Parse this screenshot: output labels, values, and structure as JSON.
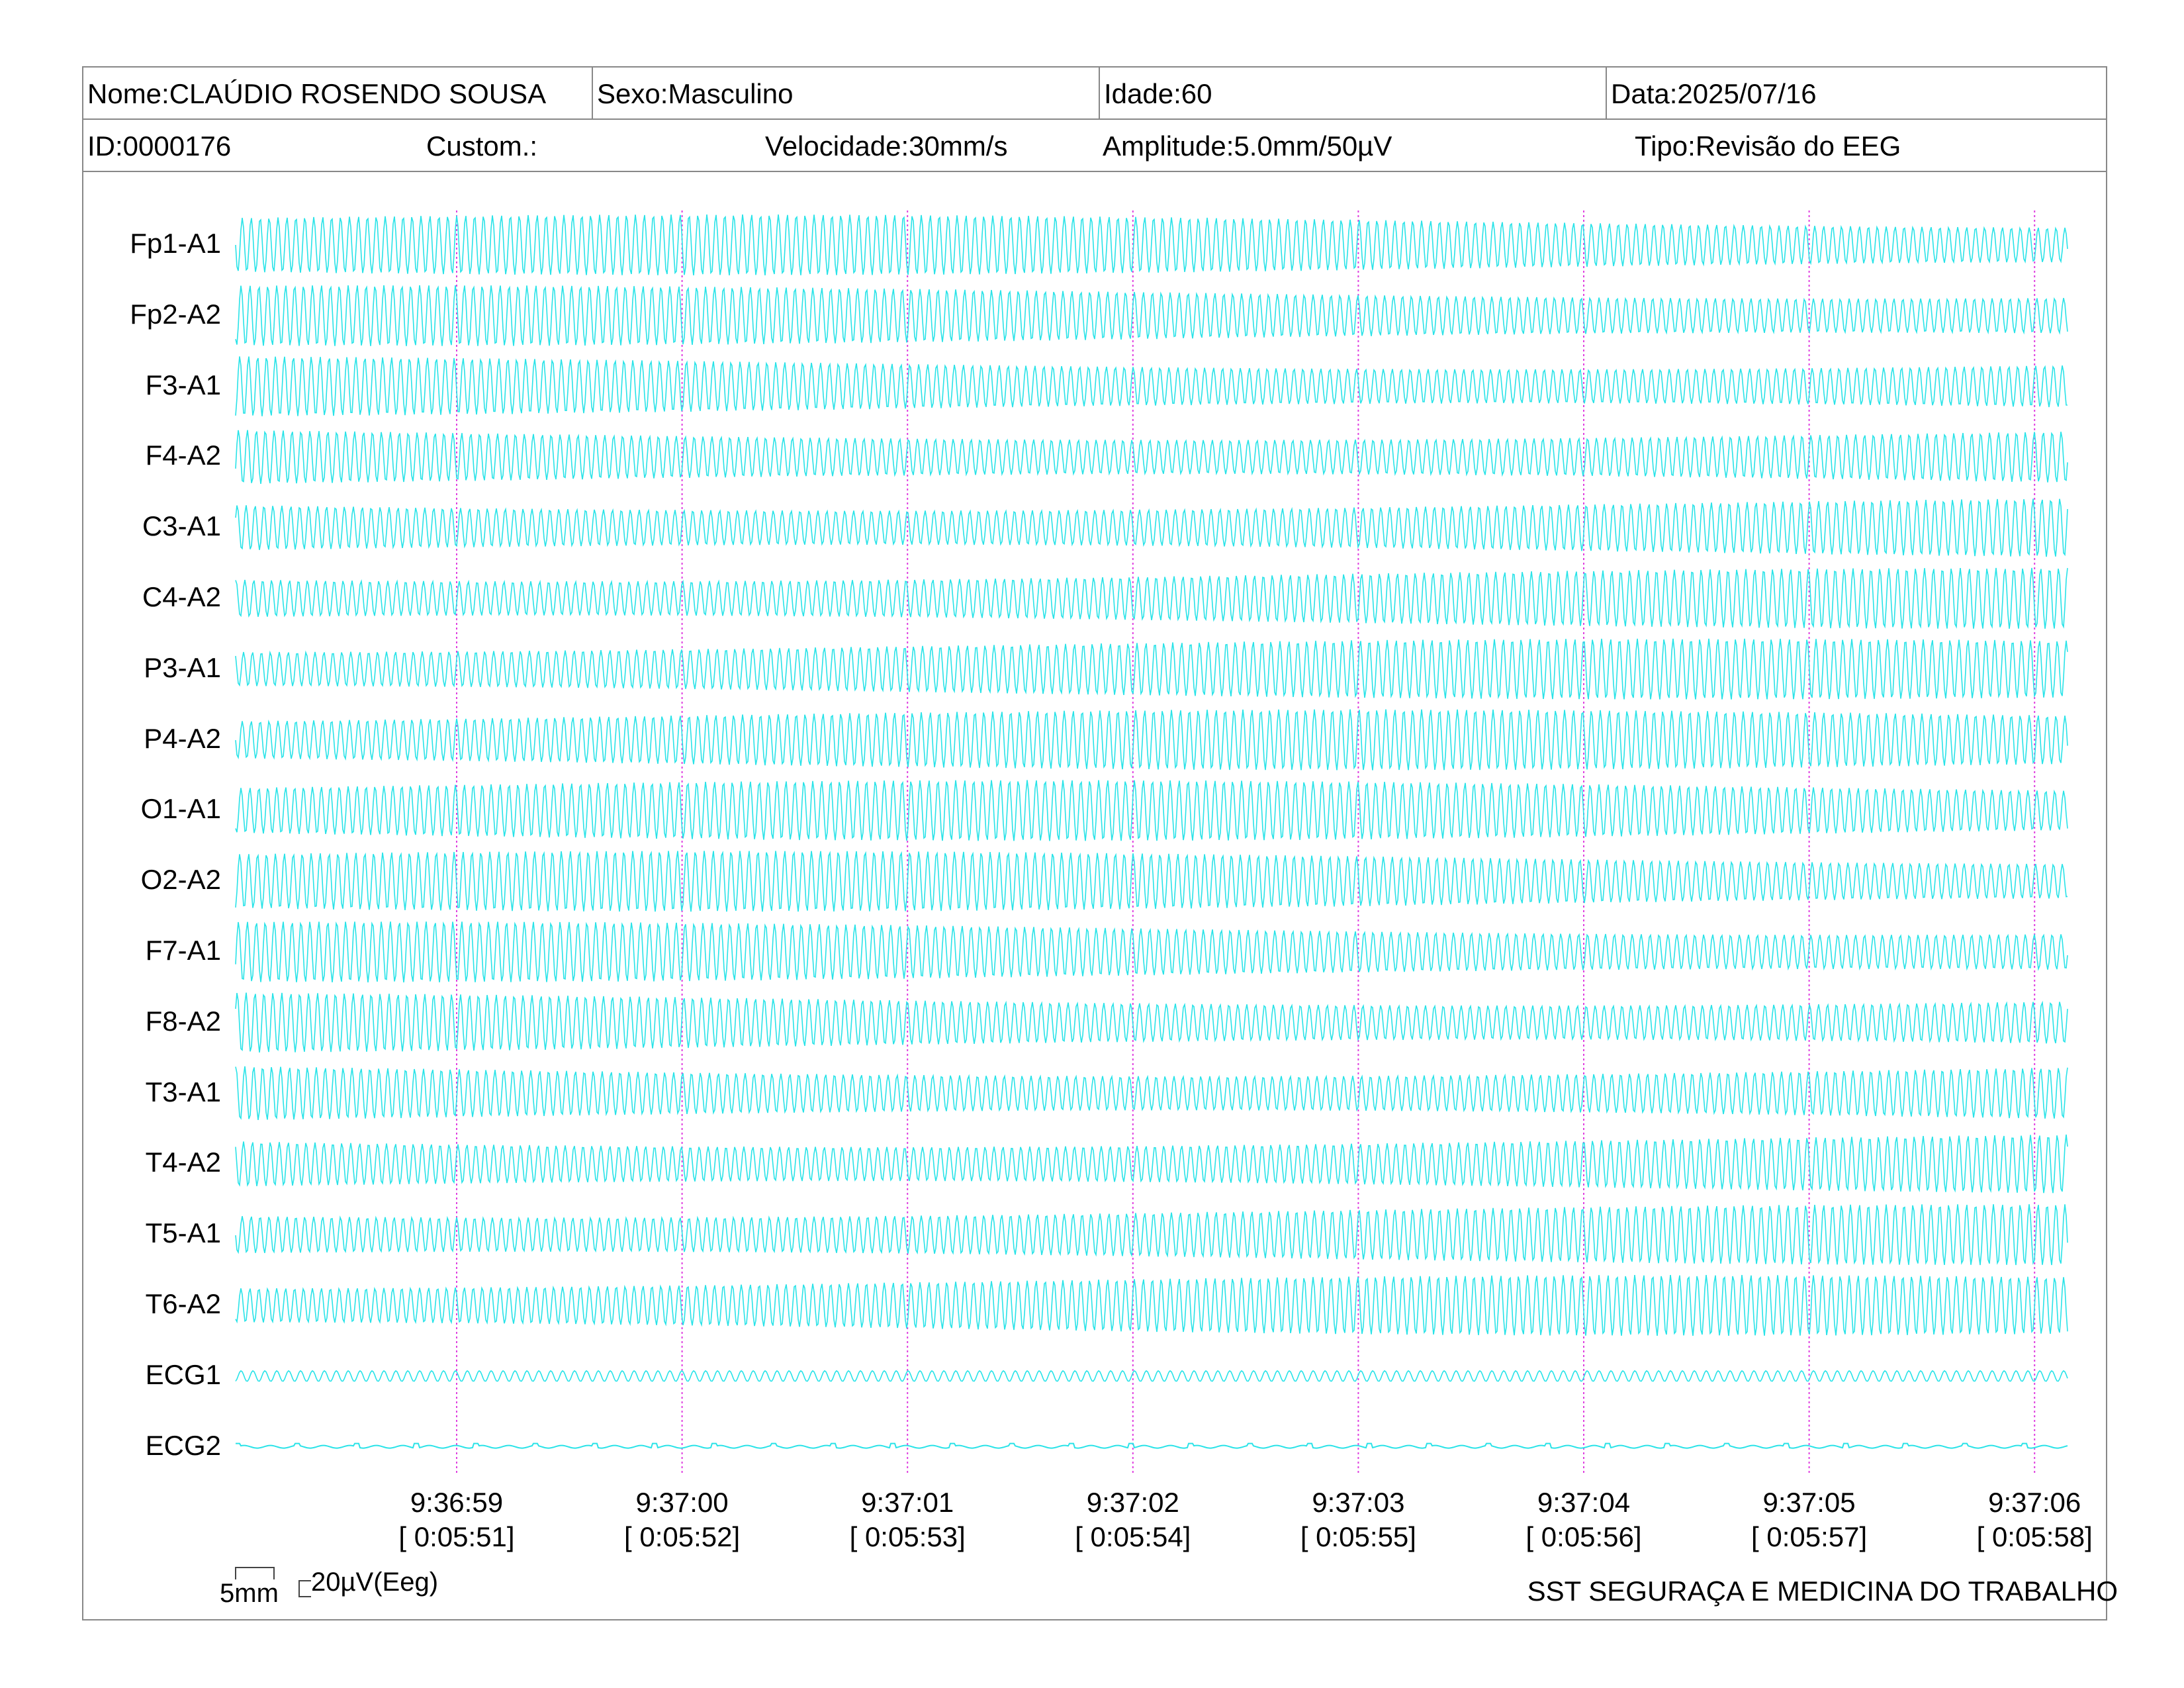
{
  "header": {
    "name": "Nome:CLAÚDIO ROSENDO SOUSA",
    "sex": "Sexo:Masculino",
    "age": "Idade:60",
    "date": "Data:2025/07/16",
    "id": "ID:0000176",
    "custom": "Custom.:",
    "speed": "Velocidade:30mm/s",
    "amplitude": "Amplitude:5.0mm/50µV",
    "type": "Tipo:Revisão do EEG"
  },
  "channels": [
    "Fp1-A1",
    "Fp2-A2",
    "F3-A1",
    "F4-A2",
    "C3-A1",
    "C4-A2",
    "P3-A1",
    "P4-A2",
    "O1-A1",
    "O2-A2",
    "F7-A1",
    "F8-A2",
    "T3-A1",
    "T4-A2",
    "T5-A1",
    "T6-A2",
    "ECG1",
    "ECG2"
  ],
  "time_marks": [
    {
      "clock": "9:36:59",
      "elapsed": "[ 0:05:51]"
    },
    {
      "clock": "9:37:00",
      "elapsed": "[ 0:05:52]"
    },
    {
      "clock": "9:37:01",
      "elapsed": "[ 0:05:53]"
    },
    {
      "clock": "9:37:02",
      "elapsed": "[ 0:05:54]"
    },
    {
      "clock": "9:37:03",
      "elapsed": "[ 0:05:55]"
    },
    {
      "clock": "9:37:04",
      "elapsed": "[ 0:05:56]"
    },
    {
      "clock": "9:37:05",
      "elapsed": "[ 0:05:57]"
    },
    {
      "clock": "9:37:06",
      "elapsed": "[ 0:05:58]"
    }
  ],
  "calibration": {
    "horizontal": "5mm",
    "vertical": "20µV(Eeg)"
  },
  "footer": {
    "company": "SST SEGURAÇA E MEDICINA DO TRABALHO"
  },
  "colors": {
    "trace": "#29e3e8",
    "time_marker": "#e040e0",
    "border": "#888888"
  }
}
